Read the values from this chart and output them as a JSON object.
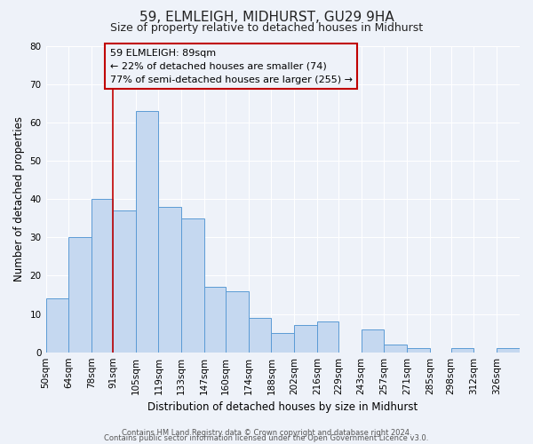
{
  "title": "59, ELMLEIGH, MIDHURST, GU29 9HA",
  "subtitle": "Size of property relative to detached houses in Midhurst",
  "xlabel": "Distribution of detached houses by size in Midhurst",
  "ylabel": "Number of detached properties",
  "bar_labels": [
    "50sqm",
    "64sqm",
    "78sqm",
    "91sqm",
    "105sqm",
    "119sqm",
    "133sqm",
    "147sqm",
    "160sqm",
    "174sqm",
    "188sqm",
    "202sqm",
    "216sqm",
    "229sqm",
    "243sqm",
    "257sqm",
    "271sqm",
    "285sqm",
    "298sqm",
    "312sqm",
    "326sqm"
  ],
  "bar_values": [
    14,
    30,
    40,
    37,
    63,
    38,
    35,
    17,
    16,
    9,
    5,
    7,
    8,
    0,
    6,
    2,
    1,
    0,
    1,
    0,
    1
  ],
  "bar_edges": [
    50,
    64,
    78,
    91,
    105,
    119,
    133,
    147,
    160,
    174,
    188,
    202,
    216,
    229,
    243,
    257,
    271,
    285,
    298,
    312,
    326,
    340
  ],
  "bar_color": "#c5d8f0",
  "bar_edgecolor": "#5b9bd5",
  "vline_x": 91,
  "vline_color": "#c00000",
  "annotation_lines": [
    "59 ELMLEIGH: 89sqm",
    "← 22% of detached houses are smaller (74)",
    "77% of semi-detached houses are larger (255) →"
  ],
  "annotation_box_edgecolor": "#c00000",
  "ylim": [
    0,
    80
  ],
  "yticks": [
    0,
    10,
    20,
    30,
    40,
    50,
    60,
    70,
    80
  ],
  "bg_color": "#eef2f9",
  "grid_color": "#ffffff",
  "footer_lines": [
    "Contains HM Land Registry data © Crown copyright and database right 2024.",
    "Contains public sector information licensed under the Open Government Licence v3.0."
  ],
  "title_fontsize": 11,
  "subtitle_fontsize": 9,
  "axis_label_fontsize": 8.5,
  "tick_fontsize": 7.5,
  "annotation_fontsize": 8,
  "footer_fontsize": 6
}
